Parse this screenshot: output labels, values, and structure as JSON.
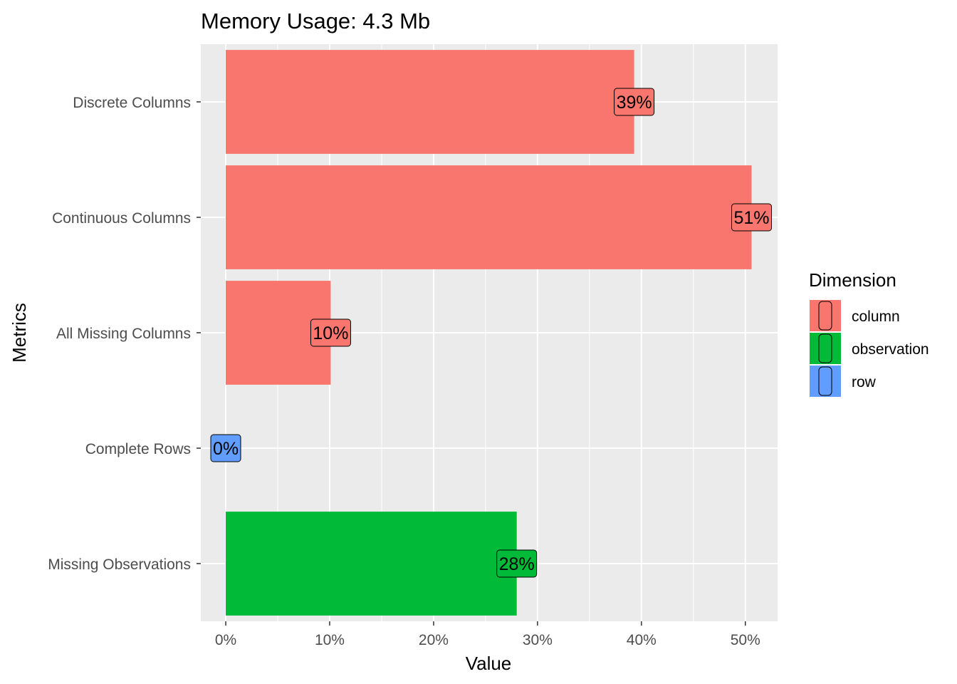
{
  "chart_data": {
    "type": "bar",
    "orientation": "horizontal",
    "title": "Memory Usage: 4.3 Mb",
    "xlabel": "Value",
    "ylabel": "Metrics",
    "xlim": [
      -0.024,
      0.531
    ],
    "x_ticks": [
      0,
      0.1,
      0.2,
      0.3,
      0.4,
      0.5
    ],
    "x_tick_labels": [
      "0%",
      "10%",
      "20%",
      "30%",
      "40%",
      "50%"
    ],
    "grid": true,
    "legend_placement": "right",
    "categories": [
      "Discrete Columns",
      "Continuous Columns",
      "All Missing Columns",
      "Complete Rows",
      "Missing Observations"
    ],
    "values": [
      0.393,
      0.506,
      0.101,
      0.0,
      0.28
    ],
    "data_labels": [
      "39%",
      "51%",
      "10%",
      "0%",
      "28%"
    ],
    "dimension": [
      "column",
      "column",
      "column",
      "row",
      "observation"
    ],
    "legend": {
      "title": "Dimension",
      "entries": [
        {
          "name": "column",
          "color": "#F8766D"
        },
        {
          "name": "observation",
          "color": "#00BA38"
        },
        {
          "name": "row",
          "color": "#619CFF"
        }
      ]
    },
    "panel_background": "#EBEBEB",
    "gridline_color": "#FFFFFF"
  }
}
